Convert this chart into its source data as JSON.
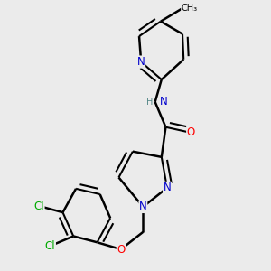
{
  "bg_color": "#ebebeb",
  "bond_color": "#000000",
  "bond_width": 1.8,
  "atom_colors": {
    "N": "#0000cc",
    "O": "#ff0000",
    "Cl": "#00aa00",
    "C": "#000000",
    "H": "#666666"
  },
  "font_size": 8.5,
  "fig_size": [
    3.0,
    3.0
  ],
  "dpi": 100
}
